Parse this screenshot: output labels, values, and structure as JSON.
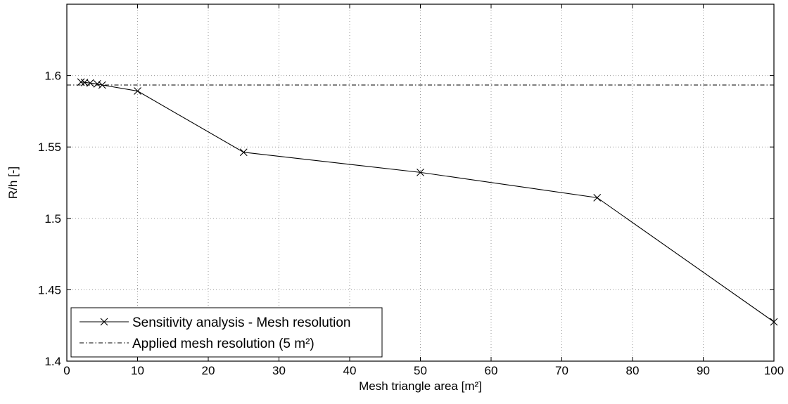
{
  "chart_data": {
    "type": "line",
    "xlabel": "Mesh triangle area [m²]",
    "ylabel": "R/h [-]",
    "xlim": [
      0,
      100
    ],
    "ylim": [
      1.4,
      1.65
    ],
    "xticks": [
      0,
      10,
      20,
      30,
      40,
      50,
      60,
      70,
      80,
      90,
      100
    ],
    "yticks": [
      1.4,
      1.45,
      1.5,
      1.55,
      1.6
    ],
    "ytick_labels": [
      "1.4",
      "1.45",
      "1.5",
      "1.55",
      "1.6"
    ],
    "grid": true,
    "legend_position": "bottom-left",
    "series": [
      {
        "name": "Sensitivity analysis - Mesh resolution",
        "style": "solid",
        "marker": "x",
        "x": [
          2,
          2.5,
          3.3,
          4.3,
          5,
          10,
          25,
          50,
          75,
          100
        ],
        "y": [
          1.5955,
          1.5952,
          1.5948,
          1.5942,
          1.5934,
          1.5892,
          1.5463,
          1.5322,
          1.5145,
          1.4275
        ]
      },
      {
        "name": "Applied mesh resolution (5 m²)",
        "style": "dash-dot",
        "marker": "none",
        "y_constant": 1.5934
      }
    ],
    "colors": {
      "series": "#000000",
      "grid": "#9a9a9a",
      "background": "#ffffff"
    }
  }
}
